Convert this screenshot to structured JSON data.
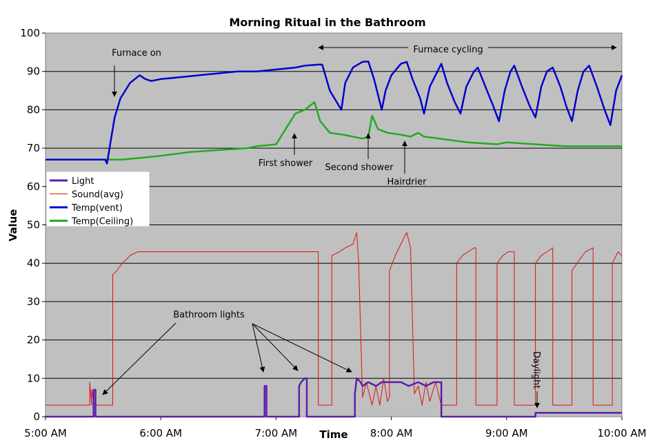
{
  "chart_data": {
    "type": "line",
    "title": "Morning Ritual in the Bathroom",
    "xlabel": "Time",
    "ylabel": "Value",
    "x_ticks": [
      "5:00 AM",
      "6:00 AM",
      "7:00 AM",
      "8:00 AM",
      "9:00 AM",
      "10:00 AM"
    ],
    "y_ticks": [
      0,
      10,
      20,
      30,
      40,
      50,
      60,
      70,
      80,
      90,
      100
    ],
    "xlim": [
      "5:00 AM",
      "10:00 AM"
    ],
    "ylim": [
      0,
      100
    ],
    "grid": "horizontal",
    "legend_position": "middle-left",
    "series": [
      {
        "name": "Light",
        "color": "#5a1fa8",
        "points": [
          [
            "5:00",
            0
          ],
          [
            "5:25",
            0
          ],
          [
            "5:25",
            7
          ],
          [
            "5:26",
            7
          ],
          [
            "5:26",
            0
          ],
          [
            "6:54",
            0
          ],
          [
            "6:54",
            8
          ],
          [
            "6:55",
            8
          ],
          [
            "6:55",
            0
          ],
          [
            "7:12",
            0
          ],
          [
            "7:12",
            8
          ],
          [
            "7:13",
            9
          ],
          [
            "7:15",
            10
          ],
          [
            "7:16",
            10
          ],
          [
            "7:16",
            0
          ],
          [
            "7:41",
            0
          ],
          [
            "7:41",
            6
          ],
          [
            "7:42",
            10
          ],
          [
            "7:44",
            9
          ],
          [
            "7:45",
            8
          ],
          [
            "7:48",
            9
          ],
          [
            "7:52",
            8
          ],
          [
            "7:55",
            9
          ],
          [
            "8:00",
            9
          ],
          [
            "8:05",
            9
          ],
          [
            "8:09",
            8
          ],
          [
            "8:14",
            9
          ],
          [
            "8:18",
            8
          ],
          [
            "8:22",
            9
          ],
          [
            "8:26",
            9
          ],
          [
            "8:26",
            0
          ],
          [
            "9:15",
            0
          ],
          [
            "9:15",
            1
          ],
          [
            "10:00",
            1
          ]
        ]
      },
      {
        "name": "Sound(avg)",
        "color": "#dd1111",
        "points": [
          [
            "5:00",
            3
          ],
          [
            "5:23",
            3
          ],
          [
            "5:23",
            9
          ],
          [
            "5:24",
            3
          ],
          [
            "5:24",
            7
          ],
          [
            "5:25",
            4
          ],
          [
            "5:26",
            3
          ],
          [
            "5:35",
            3
          ],
          [
            "5:35",
            37
          ],
          [
            "5:37",
            38
          ],
          [
            "5:40",
            40
          ],
          [
            "5:44",
            42
          ],
          [
            "5:48",
            43
          ],
          [
            "5:55",
            43
          ],
          [
            "6:10",
            43
          ],
          [
            "6:30",
            43
          ],
          [
            "6:50",
            43
          ],
          [
            "7:10",
            43
          ],
          [
            "7:20",
            43
          ],
          [
            "7:22",
            43
          ],
          [
            "7:22",
            3
          ],
          [
            "7:29",
            3
          ],
          [
            "7:29",
            42
          ],
          [
            "7:33",
            43
          ],
          [
            "7:36",
            44
          ],
          [
            "7:40",
            45
          ],
          [
            "7:42",
            48
          ],
          [
            "7:43",
            40
          ],
          [
            "7:45",
            5
          ],
          [
            "7:47",
            9
          ],
          [
            "7:50",
            3
          ],
          [
            "7:52",
            8
          ],
          [
            "7:54",
            3
          ],
          [
            "7:56",
            10
          ],
          [
            "7:58",
            4
          ],
          [
            "7:59",
            5
          ],
          [
            "7:59",
            38
          ],
          [
            "8:02",
            42
          ],
          [
            "8:05",
            45
          ],
          [
            "8:08",
            48
          ],
          [
            "8:09",
            46
          ],
          [
            "8:10",
            44
          ],
          [
            "8:12",
            6
          ],
          [
            "8:14",
            8
          ],
          [
            "8:16",
            3
          ],
          [
            "8:18",
            9
          ],
          [
            "8:20",
            4
          ],
          [
            "8:23",
            9
          ],
          [
            "8:26",
            3
          ],
          [
            "8:26",
            3
          ],
          [
            "8:34",
            3
          ],
          [
            "8:34",
            40
          ],
          [
            "8:37",
            42
          ],
          [
            "8:40",
            43
          ],
          [
            "8:43",
            44
          ],
          [
            "8:44",
            44
          ],
          [
            "8:44",
            3
          ],
          [
            "8:55",
            3
          ],
          [
            "8:55",
            40
          ],
          [
            "8:58",
            42
          ],
          [
            "9:01",
            43
          ],
          [
            "9:04",
            43
          ],
          [
            "9:04",
            3
          ],
          [
            "9:15",
            3
          ],
          [
            "9:15",
            40
          ],
          [
            "9:18",
            42
          ],
          [
            "9:21",
            43
          ],
          [
            "9:24",
            44
          ],
          [
            "9:24",
            3
          ],
          [
            "9:34",
            3
          ],
          [
            "9:34",
            38
          ],
          [
            "9:38",
            41
          ],
          [
            "9:41",
            43
          ],
          [
            "9:45",
            44
          ],
          [
            "9:45",
            3
          ],
          [
            "9:55",
            3
          ],
          [
            "9:55",
            40
          ],
          [
            "9:58",
            43
          ],
          [
            "10:00",
            42
          ]
        ]
      },
      {
        "name": "Temp(vent)",
        "color": "#0000cc",
        "points": [
          [
            "5:00",
            67
          ],
          [
            "5:10",
            67
          ],
          [
            "5:20",
            67
          ],
          [
            "5:31",
            67
          ],
          [
            "5:32",
            66
          ],
          [
            "5:34",
            72
          ],
          [
            "5:36",
            78
          ],
          [
            "5:39",
            83
          ],
          [
            "5:44",
            87
          ],
          [
            "5:49",
            89
          ],
          [
            "5:52",
            88
          ],
          [
            "5:55",
            87.5
          ],
          [
            "6:00",
            88
          ],
          [
            "6:10",
            88.5
          ],
          [
            "6:20",
            89
          ],
          [
            "6:30",
            89.5
          ],
          [
            "6:40",
            90
          ],
          [
            "6:50",
            90
          ],
          [
            "7:00",
            90.5
          ],
          [
            "7:10",
            91
          ],
          [
            "7:15",
            91.5
          ],
          [
            "7:20",
            91.7
          ],
          [
            "7:22",
            91.8
          ],
          [
            "7:24",
            91.8
          ],
          [
            "7:28",
            85
          ],
          [
            "7:34",
            80
          ],
          [
            "7:36",
            87
          ],
          [
            "7:40",
            91
          ],
          [
            "7:45",
            92.5
          ],
          [
            "7:48",
            92.6
          ],
          [
            "7:51",
            88
          ],
          [
            "7:55",
            80
          ],
          [
            "7:57",
            85
          ],
          [
            "8:00",
            89
          ],
          [
            "8:05",
            92
          ],
          [
            "8:08",
            92.5
          ],
          [
            "8:11",
            88
          ],
          [
            "8:15",
            83
          ],
          [
            "8:17",
            79
          ],
          [
            "8:20",
            86
          ],
          [
            "8:24",
            90
          ],
          [
            "8:26",
            92
          ],
          [
            "8:29",
            87
          ],
          [
            "8:33",
            82
          ],
          [
            "8:36",
            79
          ],
          [
            "8:39",
            86
          ],
          [
            "8:43",
            90
          ],
          [
            "8:45",
            91
          ],
          [
            "8:49",
            86
          ],
          [
            "8:53",
            81
          ],
          [
            "8:56",
            77
          ],
          [
            "8:59",
            85
          ],
          [
            "9:02",
            90
          ],
          [
            "9:04",
            91.5
          ],
          [
            "9:08",
            86
          ],
          [
            "9:12",
            81
          ],
          [
            "9:15",
            78
          ],
          [
            "9:18",
            86
          ],
          [
            "9:21",
            90
          ],
          [
            "9:24",
            91
          ],
          [
            "9:28",
            86
          ],
          [
            "9:31",
            81
          ],
          [
            "9:34",
            77
          ],
          [
            "9:37",
            85
          ],
          [
            "9:40",
            90
          ],
          [
            "9:43",
            91.5
          ],
          [
            "9:47",
            86
          ],
          [
            "9:51",
            80
          ],
          [
            "9:54",
            76
          ],
          [
            "9:57",
            85
          ],
          [
            "10:00",
            89
          ]
        ]
      },
      {
        "name": "Temp(Ceiling)",
        "color": "#22aa22",
        "points": [
          [
            "5:00",
            67
          ],
          [
            "5:10",
            67
          ],
          [
            "5:20",
            67
          ],
          [
            "5:30",
            67
          ],
          [
            "5:40",
            67
          ],
          [
            "5:50",
            67.5
          ],
          [
            "6:00",
            68
          ],
          [
            "6:15",
            69
          ],
          [
            "6:30",
            69.5
          ],
          [
            "6:45",
            70
          ],
          [
            "6:50",
            70.5
          ],
          [
            "7:00",
            71
          ],
          [
            "7:05",
            75
          ],
          [
            "7:10",
            79
          ],
          [
            "7:15",
            80
          ],
          [
            "7:20",
            82
          ],
          [
            "7:23",
            77
          ],
          [
            "7:28",
            74
          ],
          [
            "7:35",
            73.5
          ],
          [
            "7:45",
            72.5
          ],
          [
            "7:48",
            73
          ],
          [
            "7:50",
            78.5
          ],
          [
            "7:53",
            75
          ],
          [
            "7:58",
            74
          ],
          [
            "8:05",
            73.5
          ],
          [
            "8:10",
            73
          ],
          [
            "8:14",
            74
          ],
          [
            "8:17",
            73
          ],
          [
            "8:25",
            72.5
          ],
          [
            "8:40",
            71.5
          ],
          [
            "8:55",
            71
          ],
          [
            "9:00",
            71.5
          ],
          [
            "9:15",
            71
          ],
          [
            "9:30",
            70.5
          ],
          [
            "9:45",
            70.5
          ],
          [
            "10:00",
            70.5
          ]
        ]
      }
    ],
    "annotations": [
      {
        "text": "Furnace on",
        "at": [
          "5:42",
          88
        ]
      },
      {
        "text": "Furnace cycling",
        "span": [
          "7:24",
          "10:00"
        ],
        "y": 96
      },
      {
        "text": "First shower",
        "at": [
          "7:17",
          74
        ]
      },
      {
        "text": "Second shower",
        "at": [
          "7:45",
          74
        ]
      },
      {
        "text": "Hairdrier",
        "at": [
          "8:14",
          73
        ]
      },
      {
        "text": "Bathroom lights",
        "at": [
          "6:50",
          27
        ]
      },
      {
        "text": "Daylight",
        "at": [
          "9:15",
          2
        ]
      }
    ]
  }
}
